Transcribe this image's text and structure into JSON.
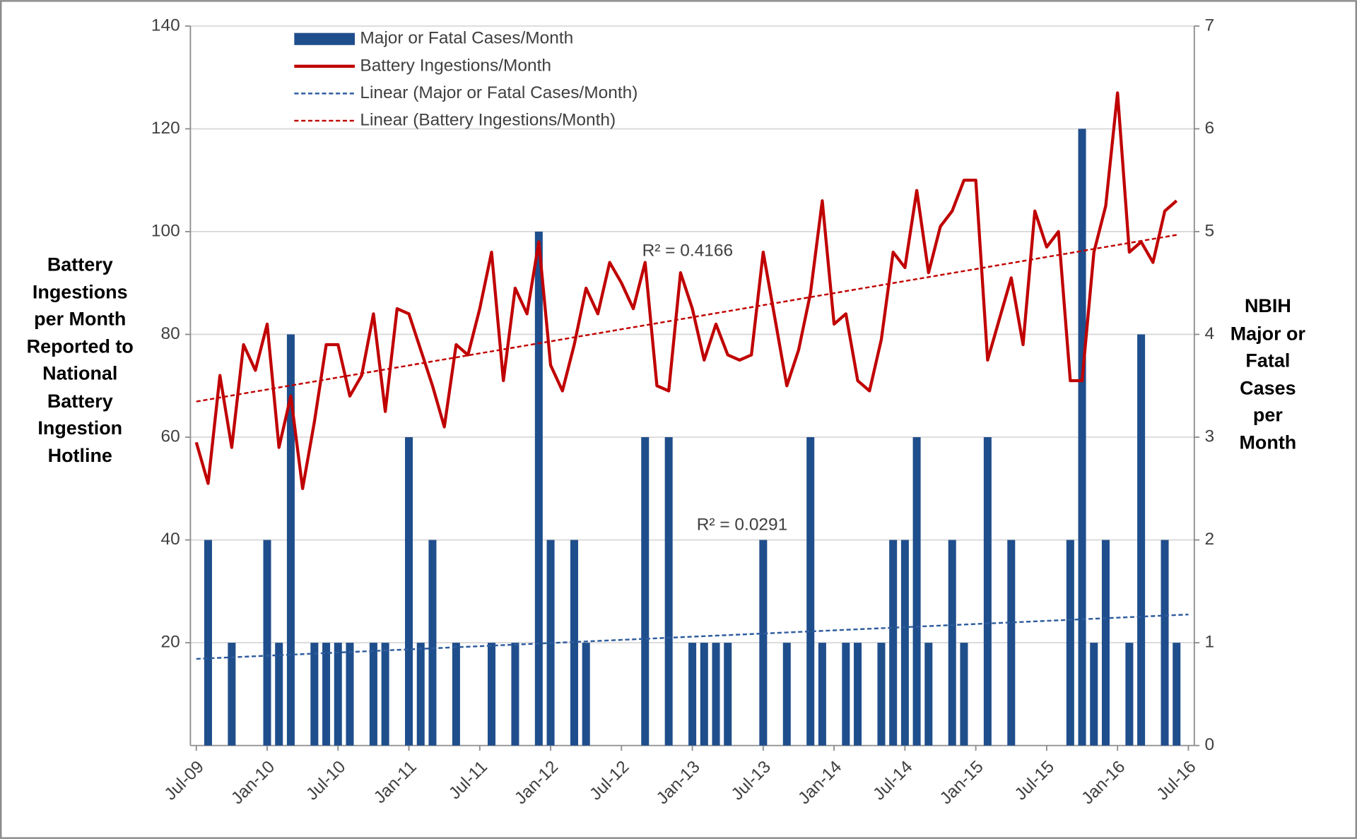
{
  "chart_data": {
    "type": "bar-line",
    "categories": [
      "Jul-09",
      null,
      null,
      null,
      null,
      null,
      "Jan-10",
      null,
      null,
      null,
      null,
      null,
      "Jul-10",
      null,
      null,
      null,
      null,
      null,
      "Jan-11",
      null,
      null,
      null,
      null,
      null,
      "Jul-11",
      null,
      null,
      null,
      null,
      null,
      "Jan-12",
      null,
      null,
      null,
      null,
      null,
      "Jul-12",
      null,
      null,
      null,
      null,
      null,
      "Jan-13",
      null,
      null,
      null,
      null,
      null,
      "Jul-13",
      null,
      null,
      null,
      null,
      null,
      "Jan-14",
      null,
      null,
      null,
      null,
      null,
      "Jul-14",
      null,
      null,
      null,
      null,
      null,
      "Jan-15",
      null,
      null,
      null,
      null,
      null,
      "Jul-15",
      null,
      null,
      null,
      null,
      null,
      "Jan-16",
      null,
      null,
      null,
      null,
      null,
      "Jul-16"
    ],
    "series": [
      {
        "name": "Major or Fatal Cases/Month",
        "kind": "bar",
        "axis": "y2",
        "color": "#1f4e8c",
        "values": [
          0,
          2,
          0,
          1,
          0,
          0,
          2,
          1,
          4,
          0,
          1,
          1,
          1,
          1,
          0,
          1,
          1,
          0,
          3,
          1,
          2,
          0,
          1,
          0,
          0,
          1,
          0,
          1,
          0,
          5,
          2,
          0,
          2,
          1,
          0,
          0,
          0,
          0,
          3,
          0,
          3,
          0,
          1,
          1,
          1,
          1,
          0,
          0,
          2,
          0,
          1,
          0,
          3,
          1,
          0,
          1,
          1,
          0,
          1,
          2,
          2,
          3,
          1,
          0,
          2,
          1,
          0,
          3,
          0,
          2,
          0,
          0,
          0,
          0,
          2,
          6,
          1,
          2,
          0,
          1,
          4,
          0,
          2,
          1,
          0
        ]
      },
      {
        "name": "Battery Ingestions/Month",
        "kind": "line",
        "color": "#c00000",
        "values": [
          59,
          51,
          72,
          58,
          78,
          73,
          82,
          58,
          68,
          50,
          63,
          78,
          78,
          68,
          72,
          84,
          65,
          85,
          84,
          77,
          70,
          62,
          78,
          76,
          85,
          96,
          71,
          89,
          84,
          98,
          74,
          69,
          78,
          89,
          84,
          94,
          90,
          85,
          94,
          70,
          69,
          92,
          85,
          75,
          82,
          76,
          75,
          76,
          96,
          83,
          70,
          77,
          88,
          106,
          82,
          84,
          71,
          69,
          79,
          96,
          93,
          108,
          92,
          101,
          104,
          110,
          110,
          75,
          83,
          91,
          78,
          104,
          97,
          100,
          71,
          71,
          96,
          105,
          127,
          96,
          98,
          94,
          104,
          106,
          null
        ]
      },
      {
        "name": "Linear (Major or Fatal Cases/Month)",
        "kind": "trend",
        "of": 0,
        "color": "#2e5c9e"
      },
      {
        "name": "Linear (Battery Ingestions/Month)",
        "kind": "trend",
        "of": 1,
        "color": "#c00000"
      }
    ],
    "annotations": [
      "R² = 0.4166",
      "R² = 0.0291"
    ],
    "ylabel": "Battery Ingestions per Month Reported to National Battery Ingestion Hotline",
    "y2label": "NBIH Major or Fatal Cases per Month",
    "ylim": [
      0,
      140
    ],
    "yticks": [
      20,
      40,
      60,
      80,
      100,
      120,
      140
    ],
    "y2lim": [
      0,
      7
    ],
    "y2ticks": [
      0,
      1,
      2,
      3,
      4,
      5,
      6,
      7
    ],
    "grid": true
  }
}
